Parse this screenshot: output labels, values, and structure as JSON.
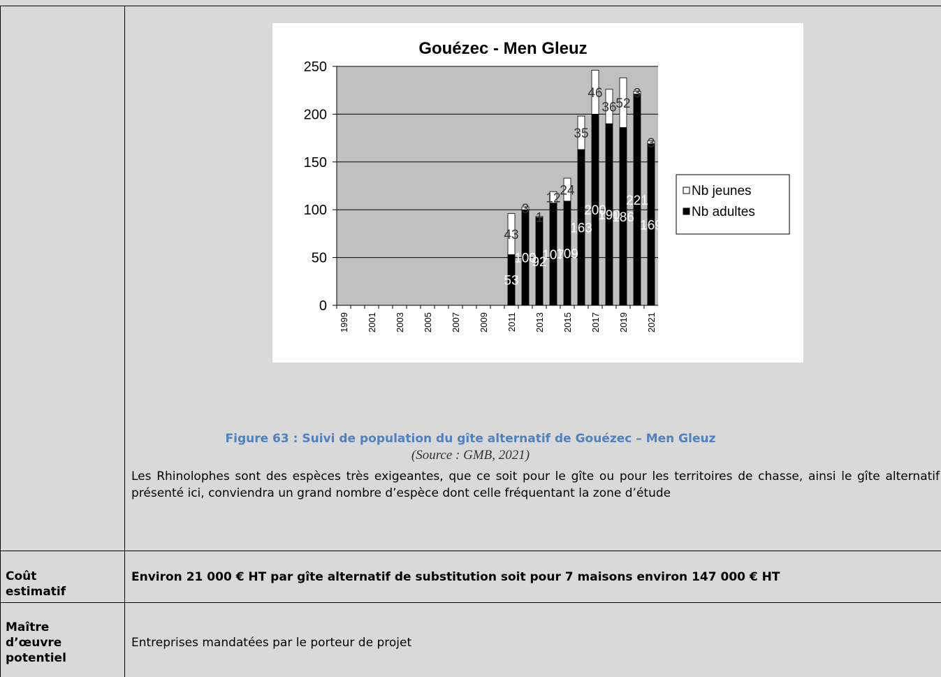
{
  "chart_data": {
    "type": "bar",
    "stacked": true,
    "title": "Gouézec - Men Gleuz",
    "categories": [
      "1999",
      null,
      "2001",
      null,
      "2003",
      null,
      "2005",
      null,
      "2007",
      null,
      "2009",
      null,
      "2011",
      null,
      "2013",
      null,
      "2015",
      null,
      "2017",
      null,
      "2019",
      null,
      "2021"
    ],
    "series": [
      {
        "name": "Nb jeunes",
        "color": "#ffffff",
        "values": [
          null,
          null,
          null,
          null,
          null,
          null,
          null,
          null,
          null,
          null,
          null,
          null,
          43,
          3,
          1,
          12,
          24,
          35,
          46,
          36,
          52,
          3,
          3
        ]
      },
      {
        "name": "Nb adultes",
        "color": "#000000",
        "values": [
          null,
          null,
          null,
          null,
          null,
          null,
          null,
          null,
          null,
          null,
          null,
          null,
          53,
          100,
          92,
          107,
          109,
          163,
          200,
          190,
          186,
          221,
          169
        ]
      }
    ],
    "ylim": [
      0,
      250
    ],
    "yticks": [
      0,
      50,
      100,
      150,
      200,
      250
    ],
    "grid": true,
    "legend": "right"
  },
  "figure_caption": "Figure 63 : Suivi de population du gîte alternatif de Gouézec – Men Gleuz",
  "source": "(Source : GMB, 2021)",
  "paragraph": "Les Rhinolophes sont des espèces très exigeantes, que ce soit pour le gîte ou pour les territoires de chasse, ainsi le gîte alternatif présenté ici, conviendra un grand nombre d’espèce dont celle fréquentant la zone d’étude",
  "rows": [
    {
      "label": "Coût estimatif",
      "text": "Environ 21 000 € HT par gîte alternatif de substitution soit pour 7 maisons environ 147 000 € HT"
    },
    {
      "label": "Maître d’œuvre potentiel",
      "text": "Entreprises mandatées par le porteur de projet"
    }
  ]
}
